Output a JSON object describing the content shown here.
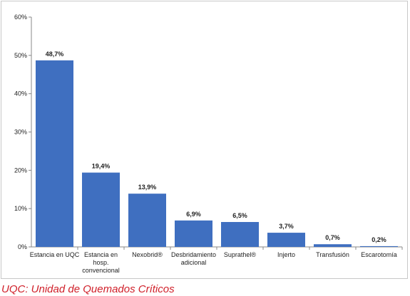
{
  "chart_data": {
    "type": "bar",
    "title": "",
    "xlabel": "",
    "ylabel": "",
    "ylim": [
      0,
      60
    ],
    "y_ticks": [
      "0%",
      "10%",
      "20%",
      "30%",
      "40%",
      "50%",
      "60%"
    ],
    "y_tick_values": [
      0,
      10,
      20,
      30,
      40,
      50,
      60
    ],
    "grid": false,
    "bar_color": "#3f6fc0",
    "categories": [
      [
        "Estancia en UQC"
      ],
      [
        "Estancia en",
        "hosp.",
        "convencional"
      ],
      [
        "Nexobrid®"
      ],
      [
        "Desbridamiento",
        "adicional"
      ],
      [
        "Suprathel®"
      ],
      [
        "Injerto"
      ],
      [
        "Transfusión"
      ],
      [
        "Escarotomía"
      ]
    ],
    "values": [
      48.7,
      19.4,
      13.9,
      6.9,
      6.5,
      3.7,
      0.7,
      0.2
    ],
    "data_labels": [
      "48,7%",
      "19,4%",
      "13,9%",
      "6,9%",
      "6,5%",
      "3,7%",
      "0,7%",
      "0,2%"
    ]
  },
  "footnote": "UQC: Unidad de Quemados Críticos"
}
